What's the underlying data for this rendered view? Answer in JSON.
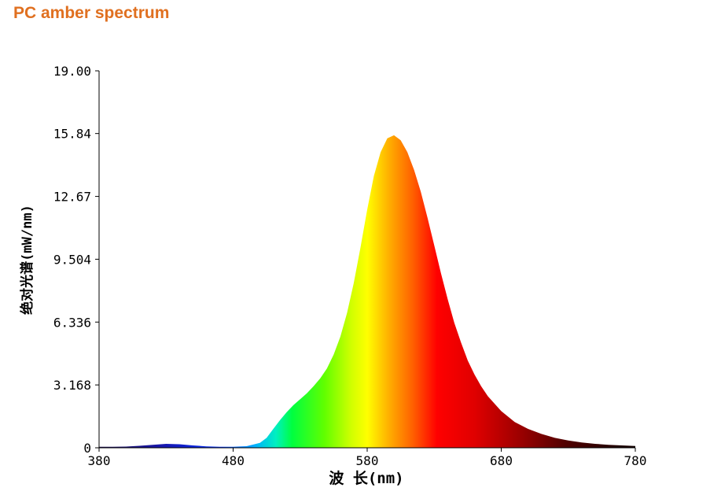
{
  "page": {
    "title": "PC amber spectrum",
    "title_color": "#e07020"
  },
  "chart_data": {
    "type": "area",
    "title": "",
    "xlabel": "波 长(nm)",
    "ylabel": "绝对光谱(mW/nm)",
    "xlim": [
      380,
      780
    ],
    "ylim": [
      0,
      19.0
    ],
    "x_ticks": [
      380,
      480,
      580,
      680,
      780
    ],
    "x_tick_labels": [
      "380",
      "480",
      "580",
      "680",
      "780"
    ],
    "y_ticks": [
      0,
      3.168,
      6.336,
      9.504,
      12.67,
      15.84,
      19.0
    ],
    "y_tick_labels": [
      "0",
      "3.168",
      "6.336",
      "9.504",
      "12.67",
      "15.84",
      "19.00"
    ],
    "grid": false,
    "legend": "none",
    "fill": "visible-spectrum gradient (blue → green → yellow → orange → red → dark red)",
    "series": [
      {
        "x": [
          380,
          390,
          400,
          410,
          420,
          430,
          440,
          450,
          460,
          470,
          480,
          490,
          500,
          505,
          510,
          515,
          520,
          525,
          530,
          535,
          540,
          545,
          550,
          555,
          560,
          565,
          570,
          575,
          580,
          585,
          590,
          595,
          600,
          605,
          610,
          615,
          620,
          625,
          630,
          635,
          640,
          645,
          650,
          655,
          660,
          665,
          670,
          680,
          690,
          700,
          710,
          720,
          730,
          740,
          750,
          760,
          770,
          780
        ],
        "y": [
          0.05,
          0.05,
          0.06,
          0.1,
          0.15,
          0.2,
          0.18,
          0.12,
          0.07,
          0.05,
          0.05,
          0.08,
          0.25,
          0.5,
          0.95,
          1.4,
          1.8,
          2.15,
          2.45,
          2.75,
          3.1,
          3.5,
          4.0,
          4.7,
          5.6,
          6.8,
          8.3,
          10.1,
          12.0,
          13.7,
          14.9,
          15.6,
          15.75,
          15.5,
          14.9,
          14.0,
          12.9,
          11.6,
          10.2,
          8.8,
          7.5,
          6.3,
          5.3,
          4.4,
          3.7,
          3.1,
          2.6,
          1.85,
          1.3,
          0.95,
          0.7,
          0.5,
          0.37,
          0.27,
          0.2,
          0.15,
          0.12,
          0.09
        ]
      }
    ]
  }
}
